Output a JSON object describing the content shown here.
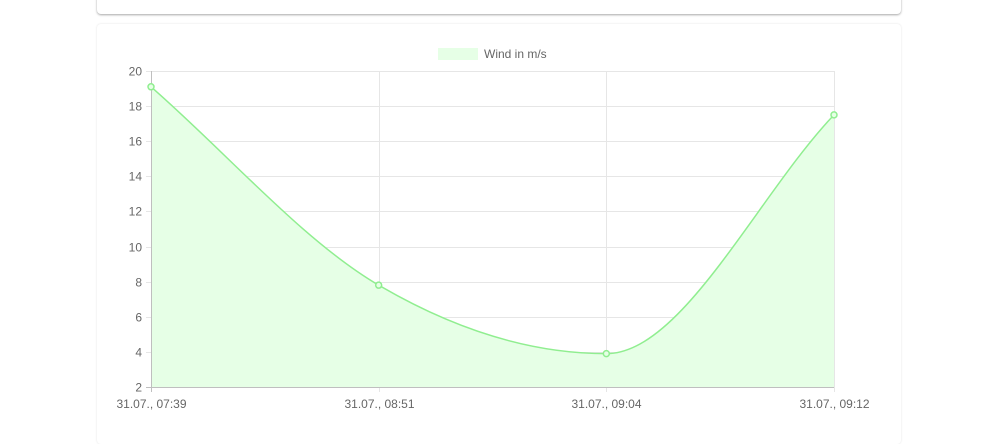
{
  "chart_data": {
    "type": "area",
    "x": [
      "31.07., 07:39",
      "31.07., 08:51",
      "31.07., 09:04",
      "31.07., 09:12"
    ],
    "series": [
      {
        "name": "Wind in m/s",
        "values": [
          19.1,
          7.8,
          3.9,
          17.5
        ]
      }
    ],
    "ylim": [
      2,
      20
    ],
    "yticks": [
      2,
      4,
      6,
      8,
      10,
      12,
      14,
      16,
      18,
      20
    ],
    "grid": true,
    "legend": "top-center",
    "colors": {
      "line": "#90ee90",
      "fill": "#e6ffe6",
      "grid": "#e6e6e6",
      "axis": "#bfbfbf"
    }
  }
}
